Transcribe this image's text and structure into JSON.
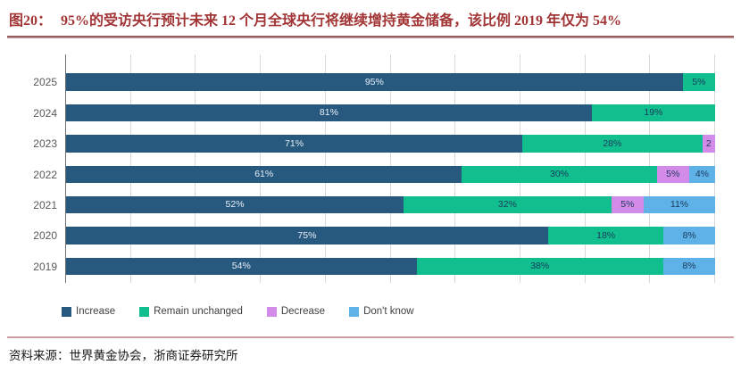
{
  "title": {
    "label": "图20：",
    "text": "95%的受访央行预计未来 12 个月全球央行将继续增持黄金储备，该比例 2019 年仅为 54%"
  },
  "source": {
    "text": "资料来源：世界黄金协会，浙商证券研究所"
  },
  "colors": {
    "title_red": "#a23535",
    "increase_blue": "#27597f",
    "remain_green": "#11bf8e",
    "decrease_purple": "#d28be8",
    "dont_know_blue": "#5fb2e8",
    "gridline_gray": "#d9d9d9",
    "axis_gray": "#6e6e6e"
  },
  "chart_data": {
    "type": "bar",
    "orientation": "horizontal",
    "stacked": true,
    "xlim": [
      0,
      100
    ],
    "grid": "vertical gridlines every 10%",
    "legend_position": "bottom-left",
    "categories": [
      "2025",
      "2024",
      "2023",
      "2022",
      "2021",
      "2020",
      "2019"
    ],
    "series": [
      {
        "name": "Increase",
        "color": "#27597f",
        "values": [
          95,
          81,
          71,
          61,
          52,
          75,
          54
        ]
      },
      {
        "name": "Remain unchanged",
        "color": "#11bf8e",
        "values": [
          5,
          19,
          28,
          30,
          32,
          18,
          38
        ]
      },
      {
        "name": "Decrease",
        "color": "#d28be8",
        "values": [
          0,
          0,
          2,
          5,
          5,
          0,
          0
        ]
      },
      {
        "name": "Don't know",
        "color": "#5fb2e8",
        "values": [
          0,
          0,
          0,
          4,
          11,
          8,
          8
        ]
      }
    ],
    "rows": [
      {
        "year": "2025",
        "segments": [
          {
            "series": "Increase",
            "value": 95,
            "label": "95%"
          },
          {
            "series": "Remain unchanged",
            "value": 5,
            "label": "5%"
          }
        ]
      },
      {
        "year": "2024",
        "segments": [
          {
            "series": "Increase",
            "value": 81,
            "label": "81%"
          },
          {
            "series": "Remain unchanged",
            "value": 19,
            "label": "19%"
          }
        ]
      },
      {
        "year": "2023",
        "segments": [
          {
            "series": "Increase",
            "value": 71,
            "label": "71%"
          },
          {
            "series": "Remain unchanged",
            "value": 28,
            "label": "28%"
          },
          {
            "series": "Decrease",
            "value": 2,
            "label": "2"
          }
        ]
      },
      {
        "year": "2022",
        "segments": [
          {
            "series": "Increase",
            "value": 61,
            "label": "61%"
          },
          {
            "series": "Remain unchanged",
            "value": 30,
            "label": "30%"
          },
          {
            "series": "Decrease",
            "value": 5,
            "label": "5%"
          },
          {
            "series": "Don't know",
            "value": 4,
            "label": "4%"
          }
        ]
      },
      {
        "year": "2021",
        "segments": [
          {
            "series": "Increase",
            "value": 52,
            "label": "52%"
          },
          {
            "series": "Remain unchanged",
            "value": 32,
            "label": "32%"
          },
          {
            "series": "Decrease",
            "value": 5,
            "label": "5%"
          },
          {
            "series": "Don't know",
            "value": 11,
            "label": "11%"
          }
        ]
      },
      {
        "year": "2020",
        "segments": [
          {
            "series": "Increase",
            "value": 75,
            "label": "75%"
          },
          {
            "series": "Remain unchanged",
            "value": 18,
            "label": "18%"
          },
          {
            "series": "Don't know",
            "value": 8,
            "label": "8%"
          }
        ]
      },
      {
        "year": "2019",
        "segments": [
          {
            "series": "Increase",
            "value": 54,
            "label": "54%"
          },
          {
            "series": "Remain unchanged",
            "value": 38,
            "label": "38%"
          },
          {
            "series": "Don't know",
            "value": 8,
            "label": "8%"
          }
        ]
      }
    ]
  }
}
